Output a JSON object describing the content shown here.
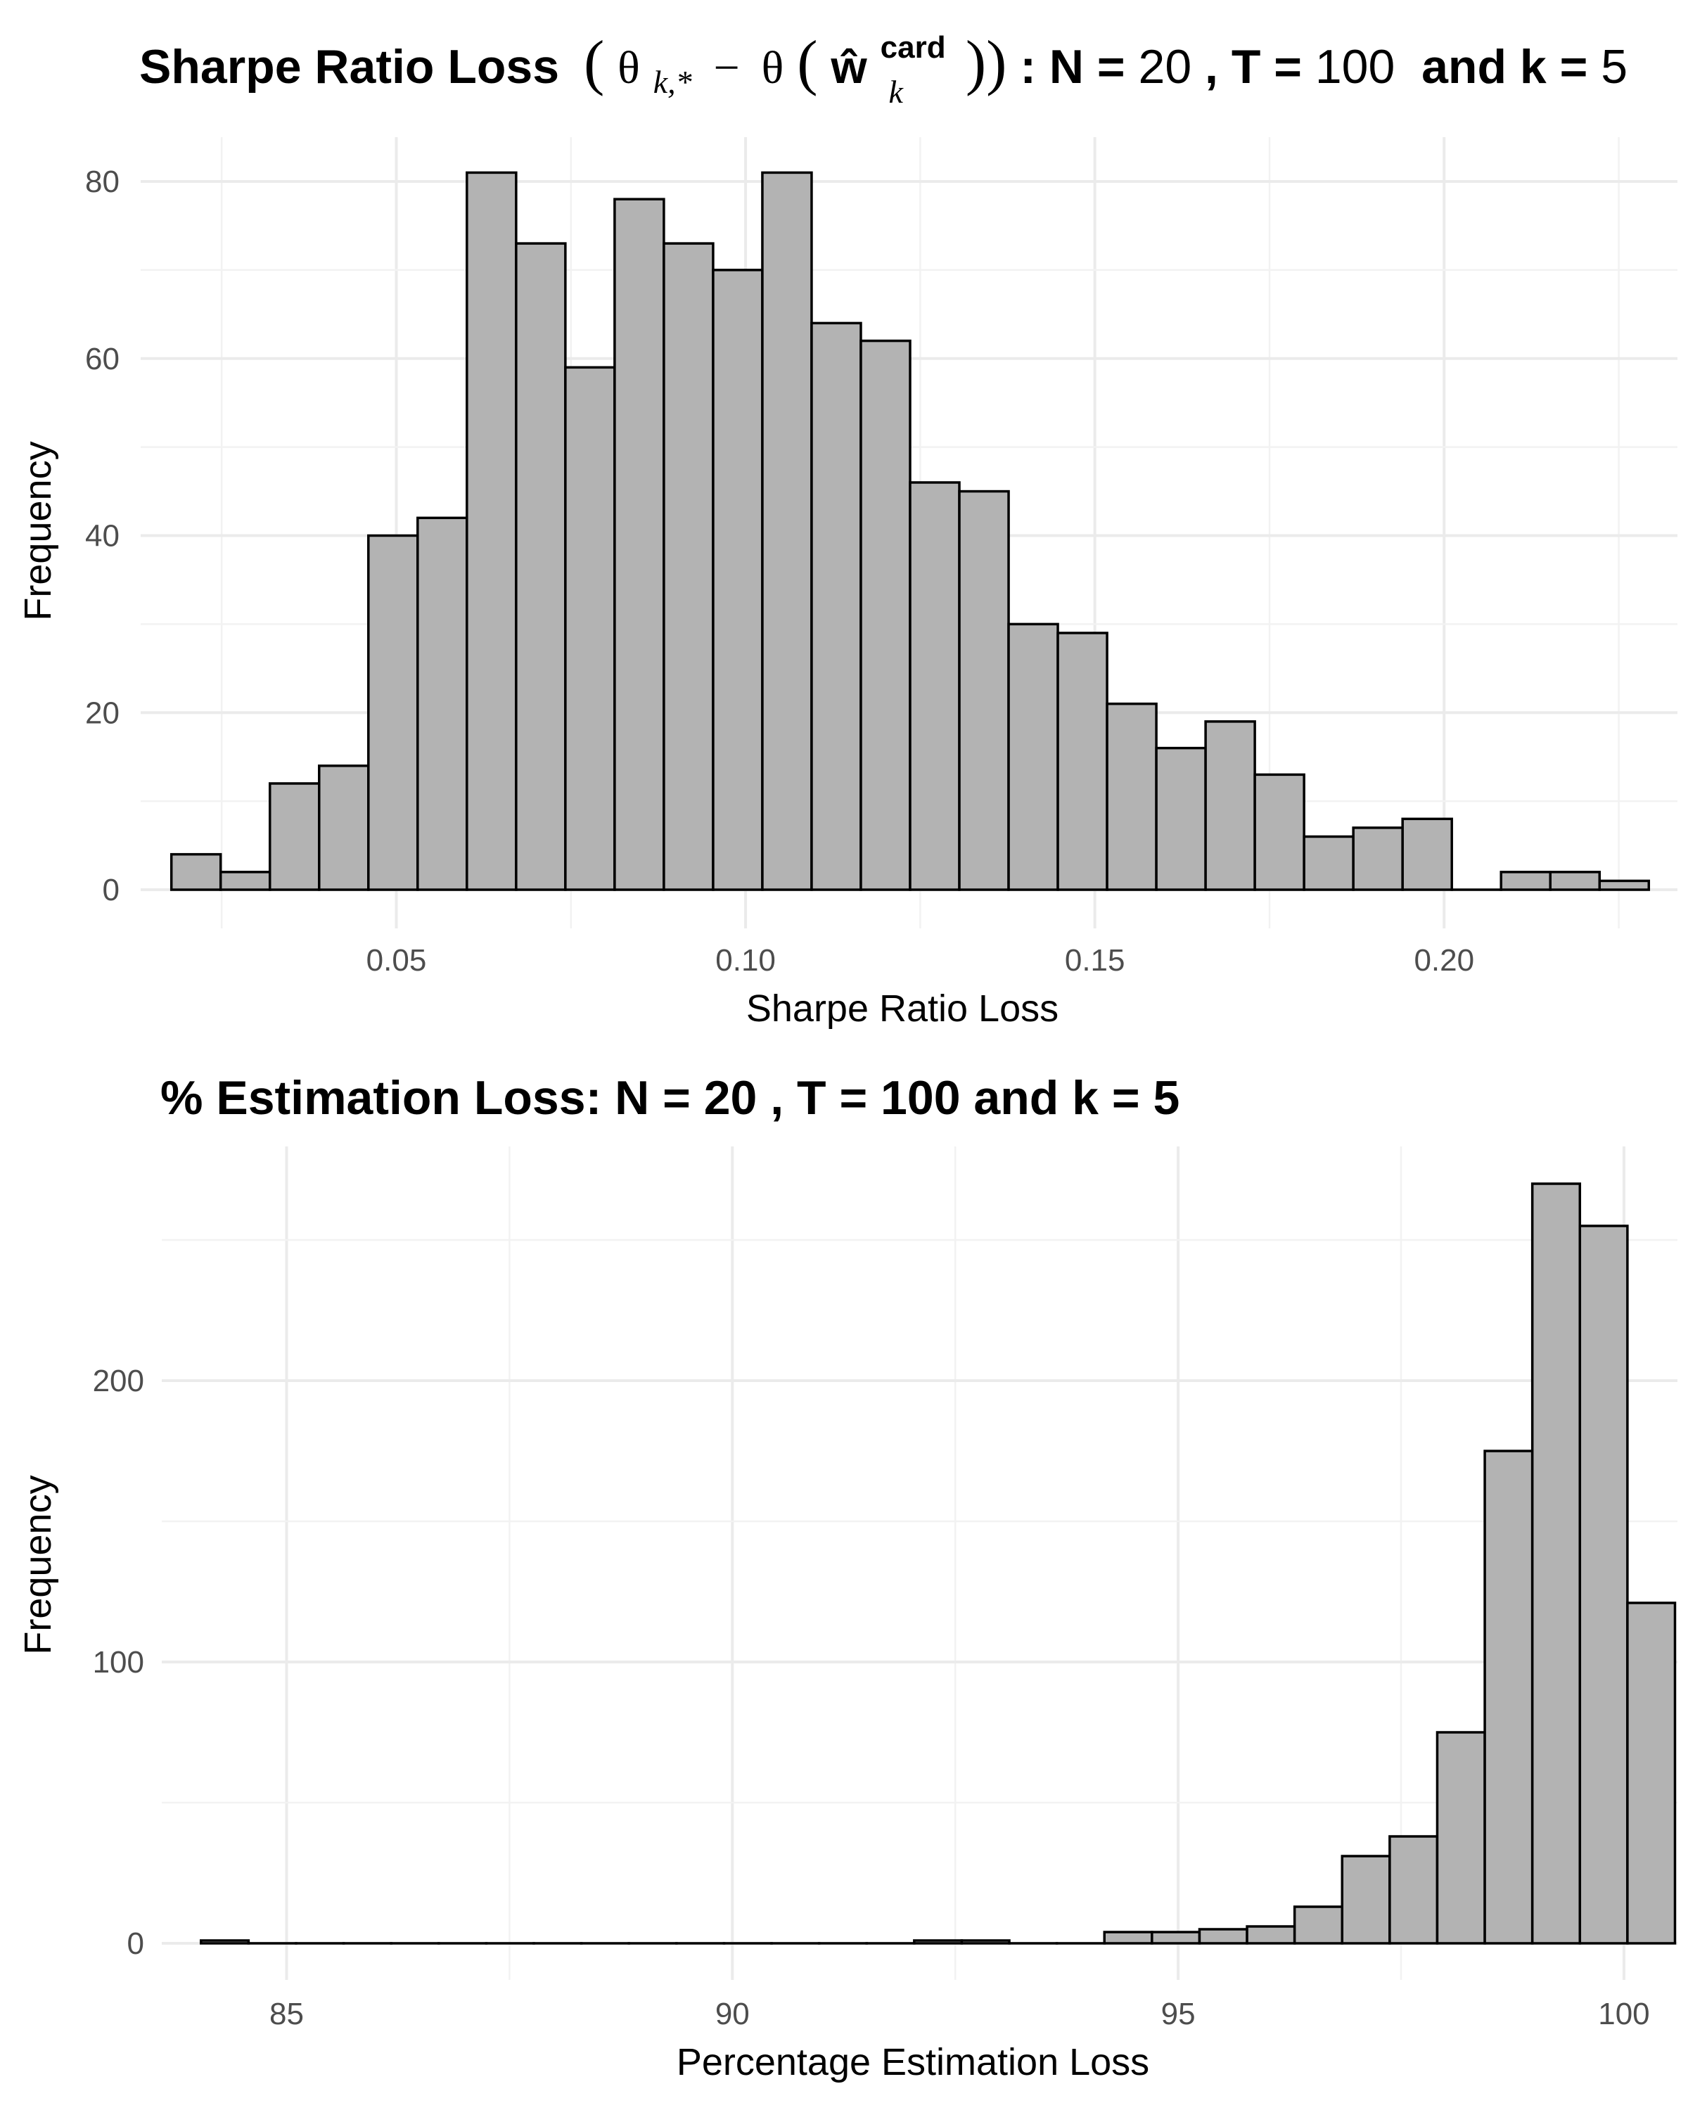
{
  "chart_data": [
    {
      "type": "bar",
      "title_prefix": "Sharpe Ratio Loss",
      "title_suffix_parts": [
        " : N = ",
        "20",
        " , T = ",
        "100",
        "  and k = ",
        "5"
      ],
      "xlabel": "Sharpe Ratio Loss",
      "ylabel": "Frequency",
      "xlim": [
        0.0134,
        0.2334
      ],
      "ylim": [
        0,
        84
      ],
      "x_ticks": [
        0.05,
        0.1,
        0.15,
        0.2
      ],
      "x_tick_labels": [
        "0.05",
        "0.10",
        "0.15",
        "0.20"
      ],
      "y_ticks": [
        0,
        20,
        40,
        60,
        80
      ],
      "y_tick_labels": [
        "0",
        "20",
        "40",
        "60",
        "80"
      ],
      "bin_start": 0.0178,
      "bin_width": 0.00705,
      "values": [
        4,
        2,
        12,
        14,
        40,
        42,
        81,
        73,
        59,
        78,
        73,
        70,
        81,
        64,
        62,
        46,
        45,
        30,
        29,
        21,
        16,
        19,
        13,
        6,
        7,
        8,
        0,
        2,
        2,
        1
      ],
      "grid": true,
      "legend": "none"
    },
    {
      "type": "bar",
      "title": "% Estimation Loss: N = 20 , T = 100 and k = 5",
      "xlabel": "Percentage Estimation Loss",
      "ylabel": "Frequency",
      "xlim": [
        83.6,
        100.6
      ],
      "ylim": [
        0,
        270
      ],
      "x_ticks": [
        85,
        90,
        95,
        100
      ],
      "x_tick_labels": [
        "85",
        "90",
        "95",
        "100"
      ],
      "y_ticks": [
        0,
        100,
        200
      ],
      "y_tick_labels": [
        "0",
        "100",
        "200"
      ],
      "bin_start": 84.04,
      "bin_width": 0.5333,
      "values": [
        1,
        0,
        0,
        0,
        0,
        0,
        0,
        0,
        0,
        0,
        0,
        0,
        0,
        0,
        0,
        1,
        1,
        0,
        0,
        4,
        4,
        5,
        6,
        13,
        31,
        38,
        75,
        175,
        270,
        255,
        121
      ],
      "grid": true,
      "legend": "none"
    }
  ]
}
